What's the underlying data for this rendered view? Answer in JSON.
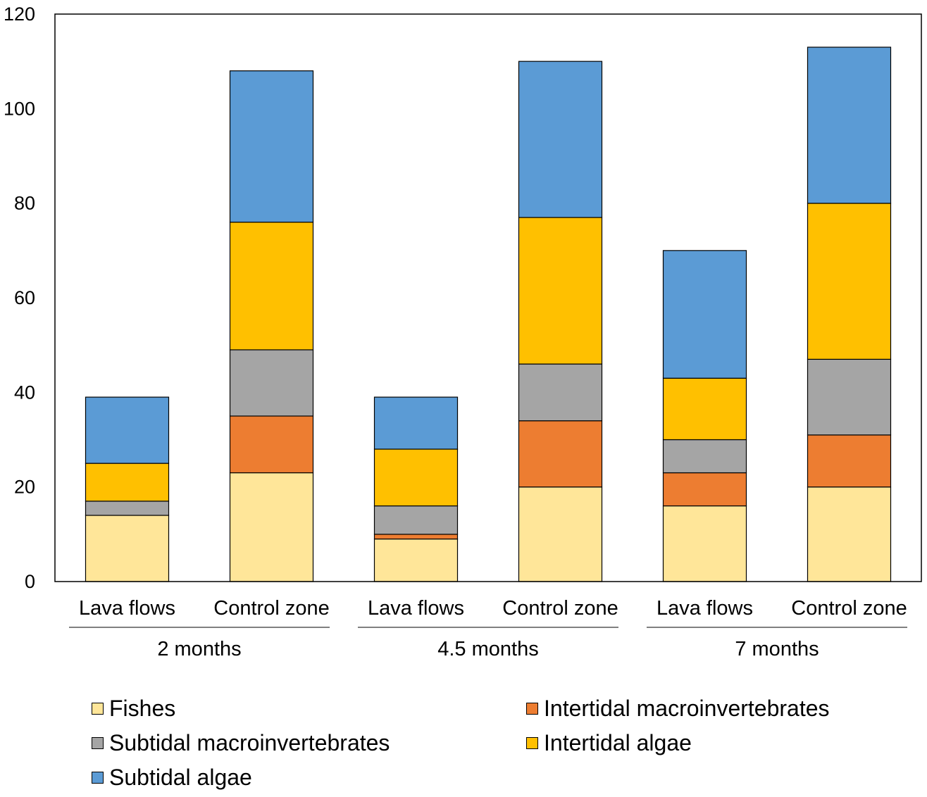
{
  "chart_data": {
    "type": "bar",
    "stacked": true,
    "categories": [
      "Lava flows",
      "Control zone",
      "Lava flows",
      "Control zone",
      "Lava flows",
      "Control zone"
    ],
    "groups": [
      {
        "label": "2 months",
        "members": [
          0,
          1
        ]
      },
      {
        "label": "4.5 months",
        "members": [
          2,
          3
        ]
      },
      {
        "label": "7 months",
        "members": [
          4,
          5
        ]
      }
    ],
    "series": [
      {
        "name": "Fishes",
        "color": "#FFE699",
        "values": [
          14,
          23,
          9,
          20,
          16,
          20
        ]
      },
      {
        "name": "Intertidal macroinvertebrates",
        "color": "#ED7D31",
        "values": [
          0,
          12,
          1,
          14,
          7,
          11
        ]
      },
      {
        "name": "Subtidal macroinvertebrates",
        "color": "#A5A5A5",
        "values": [
          3,
          14,
          6,
          12,
          7,
          16
        ]
      },
      {
        "name": "Intertidal algae",
        "color": "#FFC000",
        "values": [
          8,
          27,
          12,
          31,
          13,
          33
        ]
      },
      {
        "name": "Subtidal algae",
        "color": "#5B9BD5",
        "values": [
          14,
          32,
          11,
          33,
          27,
          33
        ]
      }
    ],
    "ylim": [
      0,
      120
    ],
    "yticks": [
      0,
      20,
      40,
      60,
      80,
      100,
      120
    ],
    "title": "",
    "xlabel": "",
    "ylabel": "",
    "legend_position": "bottom"
  },
  "legend": [
    {
      "label": "Fishes",
      "color": "#FFE699"
    },
    {
      "label": "Intertidal macroinvertebrates",
      "color": "#ED7D31"
    },
    {
      "label": "Subtidal macroinvertebrates",
      "color": "#A5A5A5"
    },
    {
      "label": "Intertidal algae",
      "color": "#FFC000"
    },
    {
      "label": "Subtidal algae",
      "color": "#5B9BD5"
    }
  ]
}
